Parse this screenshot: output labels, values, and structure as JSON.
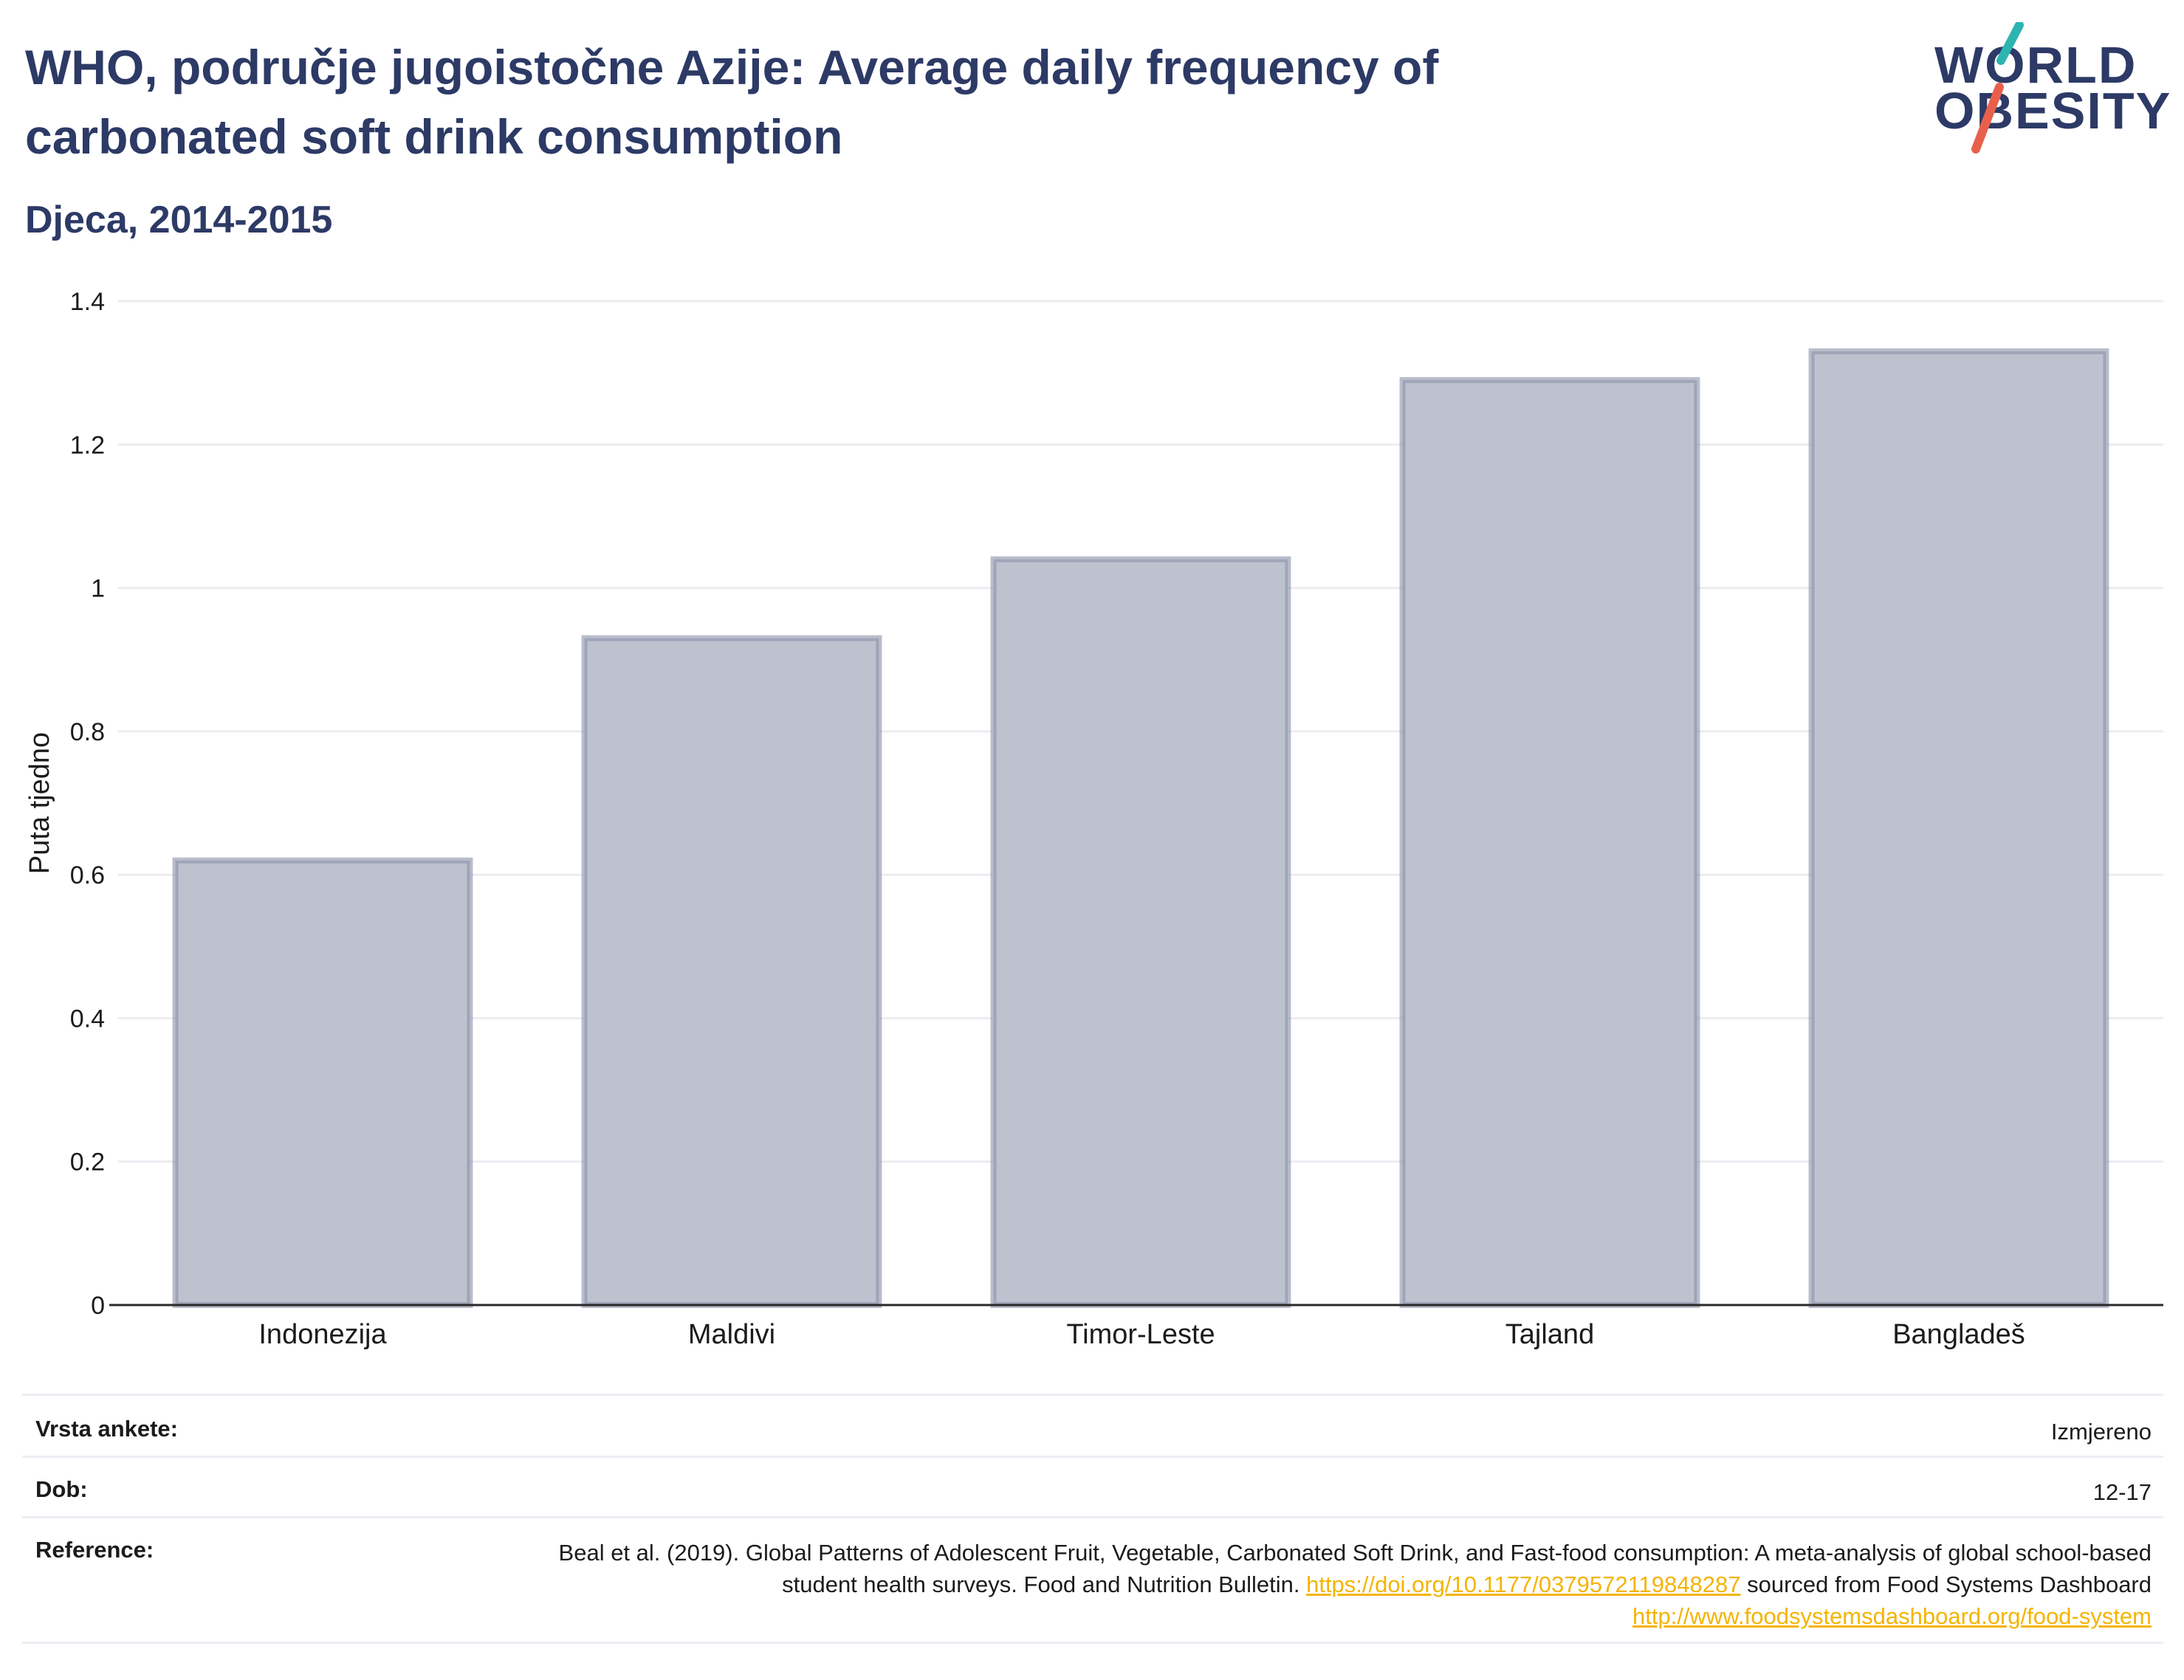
{
  "header": {
    "title": "WHO, područje jugoistočne Azije: Average daily frequency of carbonated soft drink consumption",
    "subtitle": "Djeca, 2014-2015"
  },
  "logo": {
    "line1": "WORLD",
    "line2": "OBESITY",
    "accent_teal": "#2cb5b0",
    "accent_red": "#e8604c"
  },
  "chart_data": {
    "type": "bar",
    "title": "WHO, područje jugoistočne Azije: Average daily frequency of carbonated soft drink consumption",
    "subtitle": "Djeca, 2014-2015",
    "categories": [
      "Indonezija",
      "Maldivi",
      "Timor-Leste",
      "Tajland",
      "Bangladeš"
    ],
    "values": [
      0.62,
      0.93,
      1.04,
      1.29,
      1.33
    ],
    "ylabel": "Puta tjedno",
    "xlabel": "",
    "ylim": [
      0,
      1.4
    ],
    "yticks": [
      0,
      0.2,
      0.4,
      0.6,
      0.8,
      1,
      1.2,
      1.4
    ],
    "ytick_labels": [
      "0",
      "0.2",
      "0.4",
      "0.6",
      "0.8",
      "1",
      "1.2",
      "1.4"
    ],
    "grid": true,
    "bar_fill": "#bec2cf",
    "bar_stroke": "#8a91a8",
    "grid_color": "#ececf1"
  },
  "meta": {
    "survey_type_label": "Vrsta ankete:",
    "survey_type_value": "Izmjereno",
    "age_label": "Dob:",
    "age_value": "12-17",
    "reference_label": "Reference:",
    "reference_text_1": "Beal et al. (2019). Global Patterns of Adolescent Fruit, Vegetable, Carbonated Soft Drink, and Fast-food consumption: A meta-analysis of global school-based student health surveys. Food and Nutrition Bulletin.",
    "reference_link_1": "https://doi.org/10.1177/0379572119848287",
    "reference_text_2": "sourced from Food Systems Dashboard",
    "reference_link_2": "http://www.foodsystemsdashboard.org/food-system"
  }
}
